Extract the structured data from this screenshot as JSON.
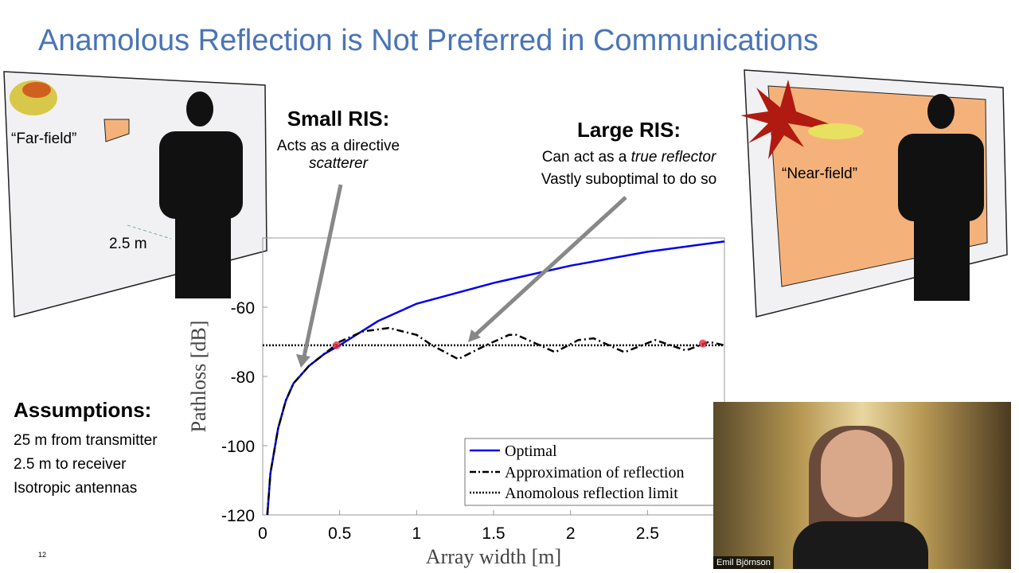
{
  "title": "Anamolous Reflection is Not Preferred in Communications",
  "left_panel": {
    "label": "“Far-field”",
    "distance": "2.5 m"
  },
  "right_panel": {
    "label": "“Near-field”"
  },
  "small_ris": {
    "heading": "Small RIS:",
    "line1": "Acts as a directive",
    "line2": "scatterer"
  },
  "large_ris": {
    "heading": "Large RIS:",
    "line1_prefix": "Can act as a ",
    "line1_em": "true reflector",
    "line2": "Vastly suboptimal to do so"
  },
  "assumptions": {
    "heading": "Assumptions:",
    "items": [
      "25 m from transmitter",
      "2.5 m to receiver",
      "Isotropic antennas"
    ]
  },
  "page_number": "12",
  "webcam": {
    "name": "Emil Björnson"
  },
  "colors": {
    "title": "#4a74b8",
    "optimal": "#0000ee",
    "panel": "#f1f1f3",
    "ris": "#f4b27a"
  },
  "chart_data": {
    "type": "line",
    "xlabel": "Array width [m]",
    "ylabel": "Pathloss [dB]",
    "xlim": [
      0,
      3
    ],
    "ylim": [
      -120,
      -40
    ],
    "xticks": [
      "0",
      "0.5",
      "1",
      "1.5",
      "2",
      "2.5"
    ],
    "xtick_values": [
      0,
      0.5,
      1,
      1.5,
      2,
      2.5
    ],
    "yticks": [
      "-60",
      "-80",
      "-100",
      "-120"
    ],
    "ytick_values": [
      -60,
      -80,
      -100,
      -120
    ],
    "legend": "bottom-right",
    "series": [
      {
        "name": "Optimal",
        "style": "solid",
        "color": "#0000ee",
        "x": [
          0.03,
          0.05,
          0.1,
          0.15,
          0.2,
          0.3,
          0.4,
          0.5,
          0.75,
          1,
          1.5,
          2,
          2.5,
          3
        ],
        "y": [
          -120,
          -108,
          -95,
          -87,
          -82,
          -77,
          -73.5,
          -71,
          -64,
          -59,
          -53,
          -48,
          -44,
          -41
        ]
      },
      {
        "name": "Approximation of reflection",
        "style": "dashdot",
        "color": "#000000",
        "x": [
          0.03,
          0.05,
          0.1,
          0.15,
          0.2,
          0.3,
          0.4,
          0.5,
          0.65,
          0.82,
          1.0,
          1.1,
          1.27,
          1.45,
          1.6,
          1.65,
          1.9,
          2.05,
          2.15,
          2.35,
          2.55,
          2.75,
          2.9,
          3.0
        ],
        "y": [
          -120,
          -108,
          -95,
          -87,
          -82,
          -77,
          -73.5,
          -70,
          -67,
          -66,
          -68,
          -71,
          -75,
          -71,
          -68,
          -68,
          -73,
          -69.5,
          -69,
          -73,
          -69.5,
          -72.5,
          -70,
          -71
        ]
      },
      {
        "name": "Anomolous reflection limit",
        "style": "dotted",
        "color": "#000000",
        "x": [
          0,
          3
        ],
        "y": [
          -71,
          -71
        ]
      }
    ],
    "markers": [
      {
        "x": 0.48,
        "y": -71
      },
      {
        "x": 2.86,
        "y": -70.5
      }
    ]
  }
}
